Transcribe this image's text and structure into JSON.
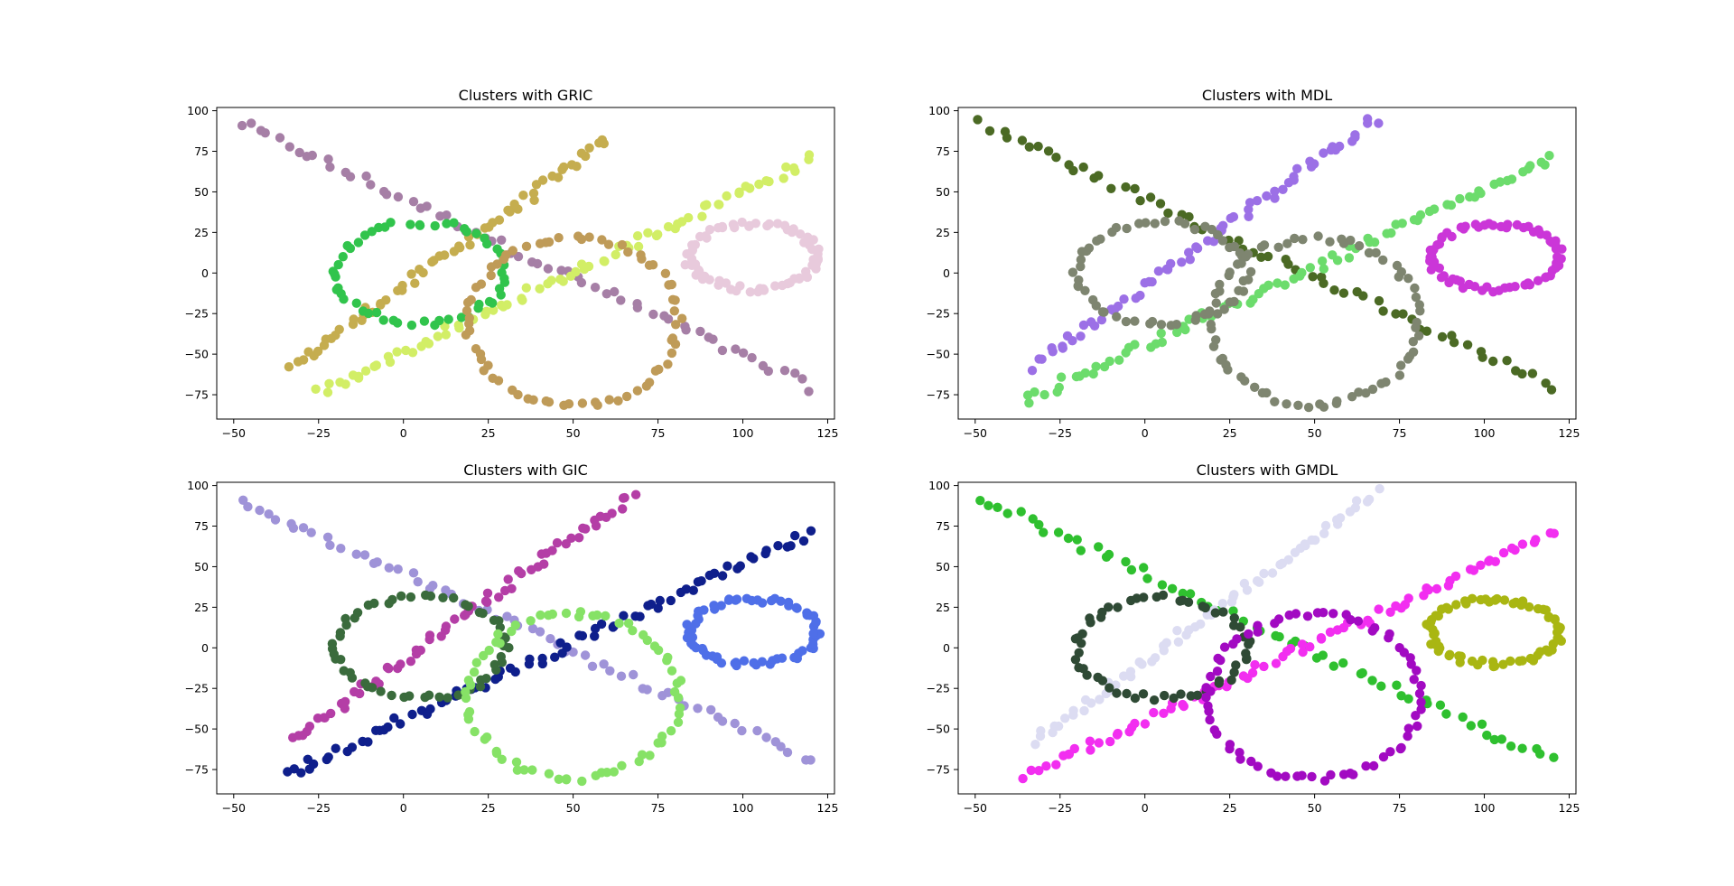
{
  "chart_data": [
    {
      "type": "scatter",
      "title": "Clusters with GRIC",
      "xlim": [
        -55,
        127
      ],
      "ylim": [
        -90,
        102
      ],
      "xticks": [
        -50,
        -25,
        0,
        25,
        50,
        75,
        100,
        125
      ],
      "yticks": [
        -75,
        -50,
        -25,
        0,
        25,
        50,
        75,
        100
      ],
      "clusters": [
        {
          "color": "#a67fa6",
          "shape": "line",
          "params": [
            -48,
            92,
            120,
            -70
          ],
          "n": 62
        },
        {
          "color": "#c5ad4f",
          "shape": "line",
          "params": [
            -33,
            -58,
            60,
            82
          ],
          "n": 62
        },
        {
          "color": "#d2ee66",
          "shape": "line",
          "params": [
            -25,
            -74,
            120,
            70
          ],
          "n": 80
        },
        {
          "color": "#31c44c",
          "shape": "ring",
          "params": [
            5,
            0,
            25,
            31
          ],
          "n": 55
        },
        {
          "color": "#bf9b58",
          "shape": "ring",
          "params": [
            50,
            -30,
            31,
            51
          ],
          "n": 70
        },
        {
          "color": "#e8cadc",
          "shape": "ring",
          "params": [
            103,
            10,
            19,
            20
          ],
          "n": 70
        }
      ]
    },
    {
      "type": "scatter",
      "title": "Clusters with MDL",
      "xlim": [
        -55,
        127
      ],
      "ylim": [
        -90,
        102
      ],
      "xticks": [
        -50,
        -25,
        0,
        25,
        50,
        75,
        100,
        125
      ],
      "yticks": [
        -75,
        -50,
        -25,
        0,
        25,
        50,
        75,
        100
      ],
      "clusters": [
        {
          "color": "#4b6a24",
          "shape": "line",
          "params": [
            -48,
            92,
            120,
            -70
          ],
          "n": 62
        },
        {
          "color": "#9c70e6",
          "shape": "line",
          "params": [
            -33,
            -58,
            68,
            95
          ],
          "n": 66
        },
        {
          "color": "#6cdc6c",
          "shape": "line",
          "params": [
            -35,
            -78,
            120,
            70
          ],
          "n": 80
        },
        {
          "color": "#7e8570",
          "shape": "ring",
          "params": [
            5,
            0,
            25,
            31
          ],
          "n": 55
        },
        {
          "color": "#7e8570",
          "shape": "ring",
          "params": [
            50,
            -30,
            31,
            51
          ],
          "n": 70
        },
        {
          "color": "#cb36d8",
          "shape": "ring",
          "params": [
            103,
            10,
            19,
            20
          ],
          "n": 70
        }
      ]
    },
    {
      "type": "scatter",
      "title": "Clusters with GIC",
      "xlim": [
        -55,
        127
      ],
      "ylim": [
        -90,
        102
      ],
      "xticks": [
        -50,
        -25,
        0,
        25,
        50,
        75,
        100,
        125
      ],
      "yticks": [
        -75,
        -50,
        -25,
        0,
        25,
        50,
        75,
        100
      ],
      "clusters": [
        {
          "color": "#9f93d8",
          "shape": "line",
          "params": [
            -48,
            92,
            120,
            -70
          ],
          "n": 62
        },
        {
          "color": "#b43ea6",
          "shape": "line",
          "params": [
            -33,
            -58,
            68,
            95
          ],
          "n": 66
        },
        {
          "color": "#0f1f8c",
          "shape": "line",
          "params": [
            -35,
            -78,
            120,
            70
          ],
          "n": 80
        },
        {
          "color": "#3a6b3c",
          "shape": "ring",
          "params": [
            5,
            0,
            25,
            31
          ],
          "n": 55
        },
        {
          "color": "#86e266",
          "shape": "ring",
          "params": [
            50,
            -30,
            31,
            51
          ],
          "n": 70
        },
        {
          "color": "#4f6fe8",
          "shape": "ring",
          "params": [
            103,
            10,
            19,
            20
          ],
          "n": 70
        }
      ]
    },
    {
      "type": "scatter",
      "title": "Clusters with GMDL",
      "xlim": [
        -55,
        127
      ],
      "ylim": [
        -90,
        102
      ],
      "xticks": [
        -50,
        -25,
        0,
        25,
        50,
        75,
        100,
        125
      ],
      "yticks": [
        -75,
        -50,
        -25,
        0,
        25,
        50,
        75,
        100
      ],
      "clusters": [
        {
          "color": "#2fc02f",
          "shape": "line",
          "params": [
            -48,
            92,
            120,
            -70
          ],
          "n": 62
        },
        {
          "color": "#dcdcf2",
          "shape": "line",
          "params": [
            -33,
            -58,
            68,
            95
          ],
          "n": 66
        },
        {
          "color": "#f22ef0",
          "shape": "line",
          "params": [
            -35,
            -78,
            120,
            70
          ],
          "n": 80
        },
        {
          "color": "#2f4a35",
          "shape": "ring",
          "params": [
            5,
            0,
            25,
            31
          ],
          "n": 55
        },
        {
          "color": "#a20ac2",
          "shape": "ring",
          "params": [
            50,
            -30,
            31,
            51
          ],
          "n": 70
        },
        {
          "color": "#a9b612",
          "shape": "ring",
          "params": [
            103,
            10,
            19,
            20
          ],
          "n": 70
        }
      ]
    }
  ]
}
